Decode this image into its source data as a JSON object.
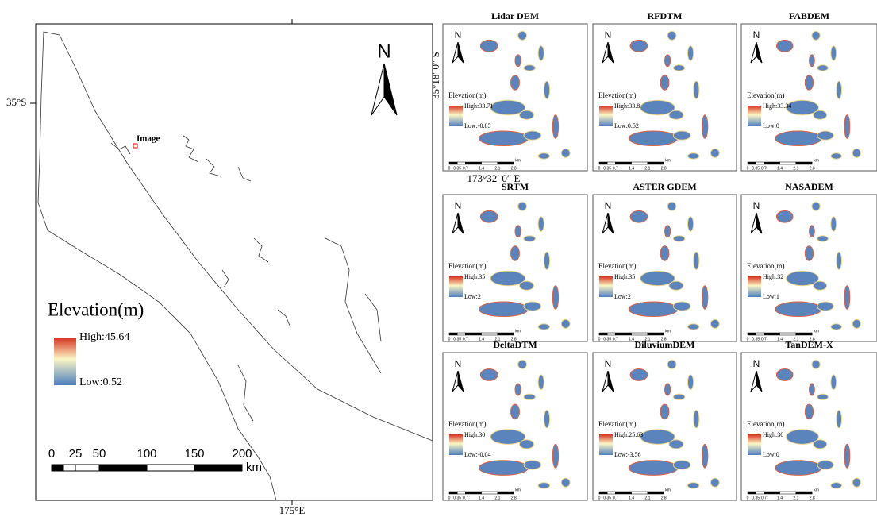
{
  "overview": {
    "lat_label": "35°S",
    "lon_label": "175°E",
    "site_label": "Image",
    "north": "N",
    "legend": {
      "title": "Elevation(m)",
      "high": "High:45.64",
      "low": "Low:0.52"
    },
    "scale": {
      "ticks": [
        "0",
        "25",
        "50",
        "100",
        "150",
        "200"
      ],
      "unit": "km"
    }
  },
  "detail_coords": {
    "lat": "35°18′ 0″ S",
    "lon": "173°32′ 0″ E"
  },
  "panel_common": {
    "north": "N",
    "legend_title": "Elevation(m)",
    "scale_ticks": [
      "0",
      "0.35",
      "0.7",
      "1.4",
      "2.1",
      "2.8"
    ],
    "scale_unit": "km"
  },
  "panels": [
    {
      "title": "Lidar DEM",
      "high": "High:33.71",
      "low": "Low:-0.85"
    },
    {
      "title": "RFDTM",
      "high": "High:33.8",
      "low": "Low:0.52"
    },
    {
      "title": "FABDEM",
      "high": "High:33.34",
      "low": "Low:0"
    },
    {
      "title": "SRTM",
      "high": "High:35",
      "low": "Low:2"
    },
    {
      "title": "ASTER GDEM",
      "high": "High:35",
      "low": "Low:2"
    },
    {
      "title": "NASADEM",
      "high": "High:32",
      "low": "Low:1"
    },
    {
      "title": "DeltaDTM",
      "high": "High:30",
      "low": "Low:-0.04"
    },
    {
      "title": "DiluviumDEM",
      "high": "High:25.63",
      "low": "Low:-3.56"
    },
    {
      "title": "TanDEM-X",
      "high": "High:30",
      "low": "Low:0"
    }
  ]
}
